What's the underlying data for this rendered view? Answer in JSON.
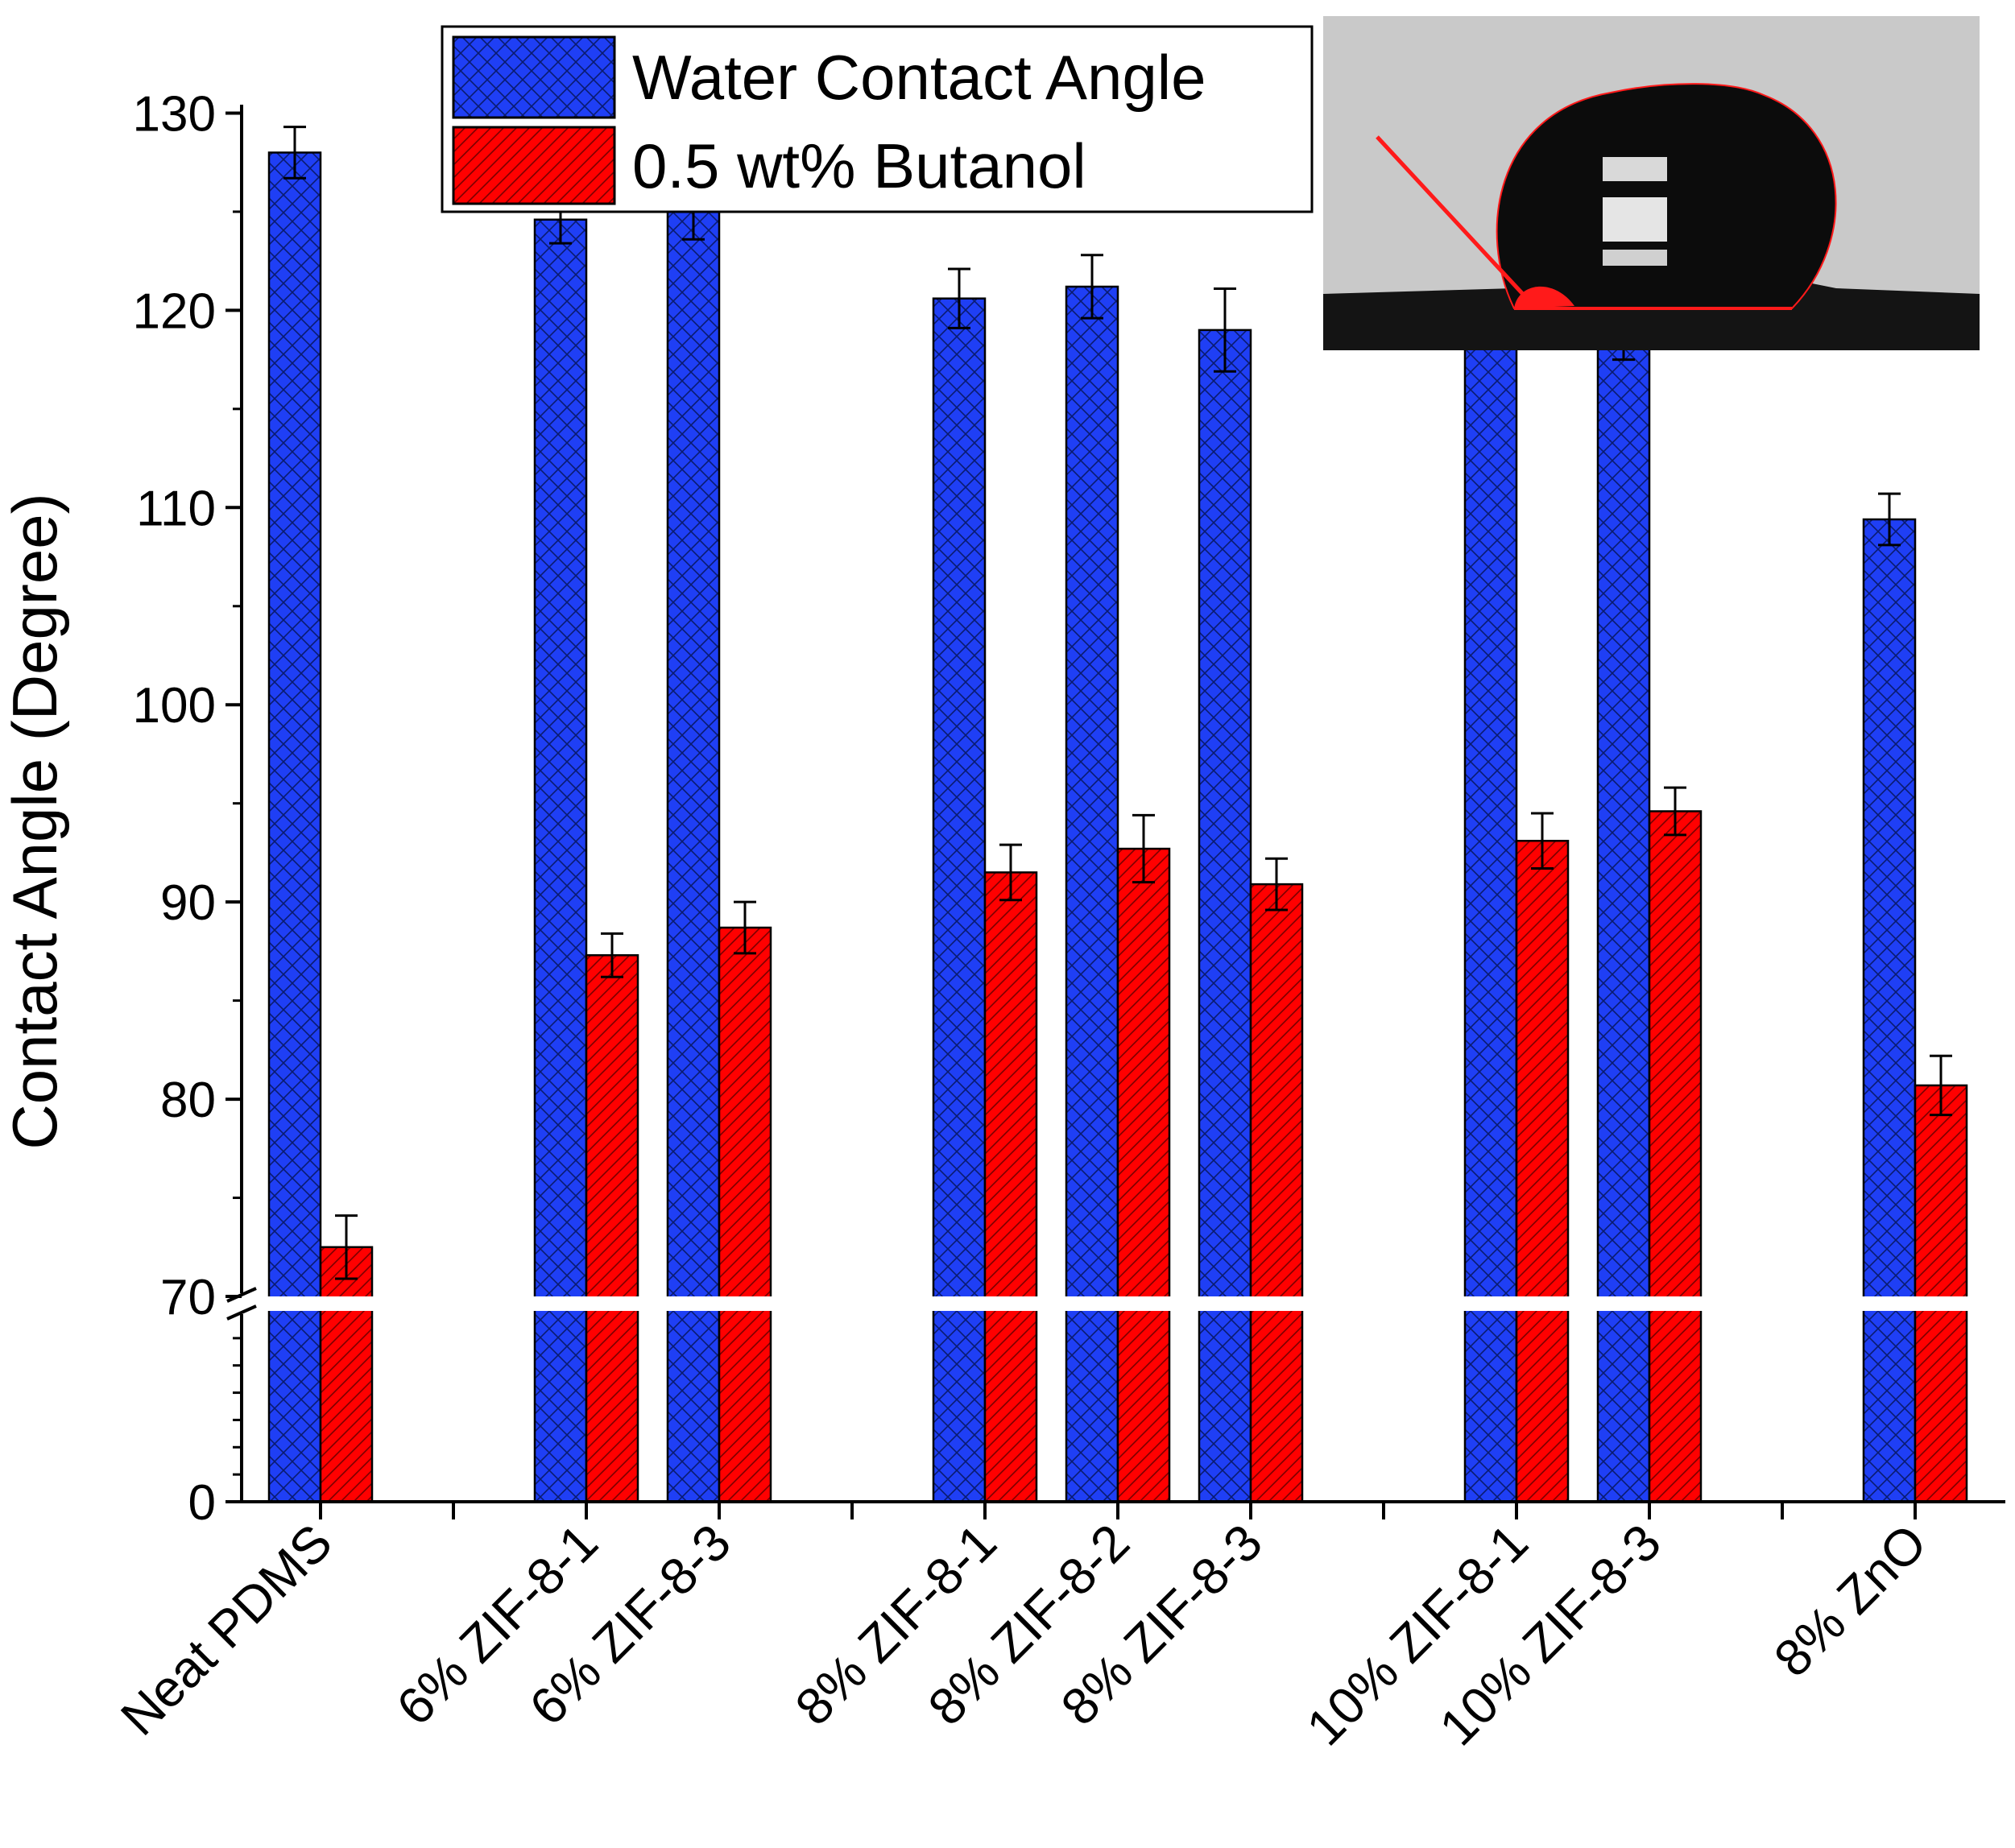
{
  "colors": {
    "water": "#1f3ff5",
    "butanol": "#ff0000",
    "axis": "#000000",
    "inset_bg": "#c9c9c9",
    "inset_line": "#ff1a1a"
  },
  "chart_data": {
    "type": "bar",
    "ylabel": "Contact Angle (Degree)",
    "xlabel": "",
    "title": "",
    "axis_break": {
      "lower": [
        0,
        70
      ],
      "upper": [
        70,
        135
      ]
    },
    "lower_ticks": [
      {
        "value": 0,
        "label": "0"
      }
    ],
    "upper_ticks": [
      {
        "value": 70,
        "label": "70"
      },
      {
        "value": 80,
        "label": "80"
      },
      {
        "value": 90,
        "label": "90"
      },
      {
        "value": 100,
        "label": "100"
      },
      {
        "value": 110,
        "label": "110"
      },
      {
        "value": 120,
        "label": "120"
      },
      {
        "value": 130,
        "label": "130"
      }
    ],
    "categories": [
      {
        "label": "Neat PDMS",
        "pos": 0
      },
      {
        "label": "6% ZIF-8-1",
        "pos": 2
      },
      {
        "label": "6% ZIF-8-3",
        "pos": 3
      },
      {
        "label": "8% ZIF-8-1",
        "pos": 5
      },
      {
        "label": "8% ZIF-8-2",
        "pos": 6
      },
      {
        "label": "8% ZIF-8-3",
        "pos": 7
      },
      {
        "label": "10% ZIF-8-1",
        "pos": 9
      },
      {
        "label": "10% ZIF-8-3",
        "pos": 10
      },
      {
        "label": "8% ZnO",
        "pos": 12
      }
    ],
    "series": [
      {
        "name": "Water Contact Angle",
        "pattern": "crosshatch",
        "values": [
          128.0,
          124.6,
          125.2,
          120.6,
          121.2,
          119.0,
          119.4,
          118.8,
          109.4
        ],
        "errors": [
          1.3,
          1.2,
          1.6,
          1.5,
          1.6,
          2.1,
          1.1,
          1.3,
          1.3
        ]
      },
      {
        "name": "0.5 wt% Butanol",
        "pattern": "hatch",
        "values": [
          72.5,
          87.3,
          88.7,
          91.5,
          92.7,
          90.9,
          93.1,
          94.6,
          80.7
        ],
        "errors": [
          1.6,
          1.1,
          1.3,
          1.4,
          1.7,
          1.3,
          1.4,
          1.2,
          1.5
        ]
      }
    ]
  },
  "inset": {
    "description_icon": "water-droplet-contact-angle-photo"
  }
}
